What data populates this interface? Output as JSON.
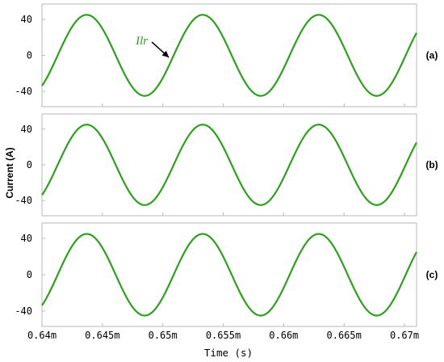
{
  "chart_data": {
    "type": "line",
    "ylabel": "Current (A)",
    "xlabel": "Time (s)",
    "x_tick_labels": [
      "0.64m",
      "0.645m",
      "0.65m",
      "0.655m",
      "0.66m",
      "0.665m",
      "0.67m"
    ],
    "x_ticks_ms": [
      0.64,
      0.645,
      0.65,
      0.655,
      0.66,
      0.665,
      0.67
    ],
    "xlim_ms": [
      0.64,
      0.671
    ],
    "line_color": "#2ea01e",
    "grid": false,
    "panels": [
      {
        "tag": "(a)",
        "ylim": [
          -57,
          57
        ],
        "y_ticks": [
          40,
          0,
          -40
        ],
        "y_tick_labels": [
          "40",
          "0",
          "-40"
        ],
        "series": [
          {
            "amplitude_A": 45,
            "period_ms": 0.0096,
            "peak_times_ms": [
              0.6437,
              0.6533,
              0.6629
            ]
          }
        ],
        "annotation": {
          "text": "Ilr",
          "arrow_to_ms": 0.6507
        }
      },
      {
        "tag": "(b)",
        "ylim": [
          -57,
          57
        ],
        "y_ticks": [
          40,
          0,
          -40
        ],
        "y_tick_labels": [
          "40",
          "0",
          "-40"
        ],
        "series": [
          {
            "amplitude_A": 45,
            "period_ms": 0.0096,
            "peak_times_ms": [
              0.6437,
              0.6533,
              0.6629
            ]
          }
        ]
      },
      {
        "tag": "(c)",
        "ylim": [
          -57,
          57
        ],
        "y_ticks": [
          40,
          0,
          -40
        ],
        "y_tick_labels": [
          "40",
          "0",
          "-40"
        ],
        "series": [
          {
            "amplitude_A": 45,
            "period_ms": 0.0096,
            "peak_times_ms": [
              0.6437,
              0.6533,
              0.6629
            ]
          }
        ]
      }
    ]
  }
}
